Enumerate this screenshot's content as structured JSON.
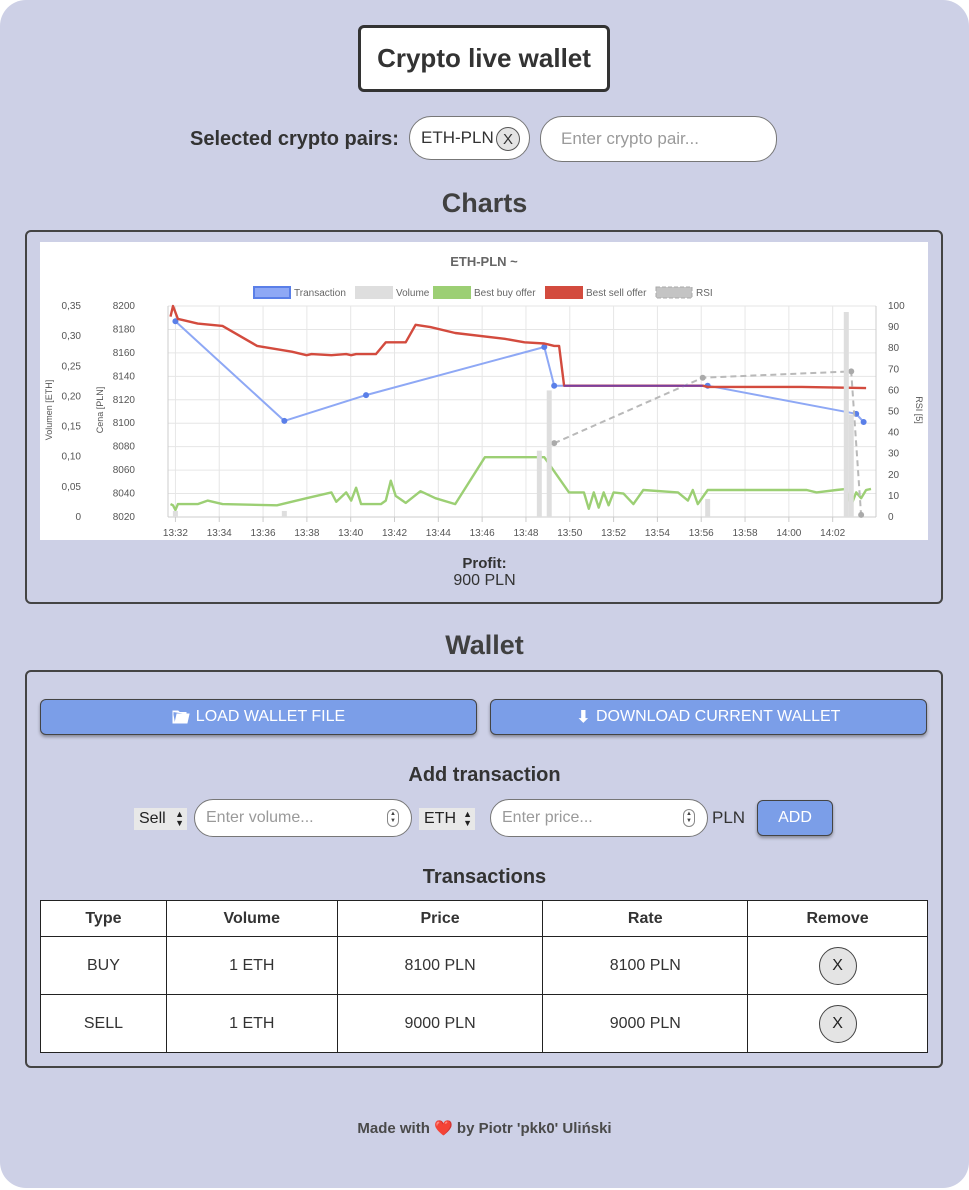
{
  "app": {
    "title": "Crypto live wallet"
  },
  "pairs": {
    "label": "Selected crypto pairs:",
    "selected": [
      {
        "name": "ETH-PLN",
        "remove_label": "X"
      }
    ],
    "input_placeholder": "Enter crypto pair..."
  },
  "charts": {
    "section_title": "Charts",
    "profit_label": "Profit:",
    "profit_value": "900 PLN"
  },
  "chart_data": {
    "type": "line",
    "title": "ETH-PLN ~",
    "legend": [
      {
        "name": "Transaction",
        "color": "#8ea8f5"
      },
      {
        "name": "Volume",
        "color": "#dedede"
      },
      {
        "name": "Best buy offer",
        "color": "#9ccf74"
      },
      {
        "name": "Best sell offer",
        "color": "#d34b3e"
      },
      {
        "name": "RSI",
        "color": "#c4c4c4"
      }
    ],
    "legend_position": "top",
    "grid": true,
    "xlabel": "",
    "x_ticks": [
      "13:32",
      "13:34",
      "13:36",
      "13:38",
      "13:40",
      "13:42",
      "13:44",
      "13:46",
      "13:48",
      "13:50",
      "13:52",
      "13:54",
      "13:56",
      "13:58",
      "14:00",
      "14:02"
    ],
    "axes": {
      "volume": {
        "label": "Volumen [ETH]",
        "ticks": [
          "0",
          "0,05",
          "0,10",
          "0,15",
          "0,20",
          "0,25",
          "0,30",
          "0,35"
        ],
        "range": [
          0,
          0.35
        ]
      },
      "price": {
        "label": "Cena [PLN]",
        "ticks": [
          "8020",
          "8040",
          "8060",
          "8080",
          "8100",
          "8120",
          "8140",
          "8160",
          "8180",
          "8200"
        ],
        "range": [
          8020,
          8200
        ]
      },
      "rsi": {
        "label": "RSI [5]",
        "ticks": [
          "0",
          "10",
          "20",
          "30",
          "40",
          "50",
          "60",
          "70",
          "80",
          "90",
          "100"
        ],
        "range": [
          0,
          100
        ]
      }
    },
    "series": [
      {
        "name": "Transaction",
        "axis": "price",
        "color": "#8ea8f5",
        "points": [
          [
            13.5,
            8187
          ],
          [
            35.5,
            8102
          ],
          [
            52,
            8124
          ],
          [
            88,
            8165
          ],
          [
            90,
            8132
          ],
          [
            121,
            8132
          ],
          [
            151,
            8108
          ],
          [
            152.5,
            8101
          ]
        ]
      },
      {
        "name": "Best sell offer",
        "axis": "price",
        "color": "#d34b3e",
        "points": [
          [
            12.5,
            8191
          ],
          [
            13,
            8200
          ],
          [
            14,
            8189
          ],
          [
            15,
            8188
          ],
          [
            18,
            8185
          ],
          [
            23,
            8183
          ],
          [
            30,
            8166
          ],
          [
            37,
            8161
          ],
          [
            40,
            8158
          ],
          [
            41,
            8159
          ],
          [
            45,
            8158
          ],
          [
            48,
            8159
          ],
          [
            49,
            8158
          ],
          [
            50,
            8159
          ],
          [
            52,
            8159
          ],
          [
            54,
            8159
          ],
          [
            56,
            8169
          ],
          [
            60,
            8169
          ],
          [
            62,
            8184
          ],
          [
            65,
            8182
          ],
          [
            70,
            8177
          ],
          [
            80,
            8172
          ],
          [
            84,
            8169
          ],
          [
            88,
            8168
          ],
          [
            89,
            8167
          ],
          [
            90,
            8166
          ],
          [
            91,
            8166
          ],
          [
            92,
            8132
          ],
          [
            100,
            8132
          ],
          [
            120,
            8132
          ],
          [
            121,
            8131
          ],
          [
            140,
            8131
          ],
          [
            153,
            8130
          ]
        ]
      },
      {
        "name": "Best buy offer",
        "axis": "price",
        "color": "#9ccf74",
        "points": [
          [
            12.5,
            8031
          ],
          [
            13,
            8030
          ],
          [
            13.5,
            8026
          ],
          [
            14,
            8031
          ],
          [
            18,
            8031
          ],
          [
            20,
            8034
          ],
          [
            23,
            8031
          ],
          [
            34,
            8030
          ],
          [
            40,
            8036
          ],
          [
            45,
            8041
          ],
          [
            46,
            8033
          ],
          [
            48,
            8041
          ],
          [
            49,
            8034
          ],
          [
            50,
            8045
          ],
          [
            51,
            8031
          ],
          [
            55,
            8031
          ],
          [
            56,
            8034
          ],
          [
            57,
            8051
          ],
          [
            58,
            8038
          ],
          [
            60,
            8032
          ],
          [
            63,
            8042
          ],
          [
            66,
            8036
          ],
          [
            70,
            8031
          ],
          [
            76,
            8071
          ],
          [
            88,
            8071
          ],
          [
            93,
            8041
          ],
          [
            96,
            8041
          ],
          [
            97,
            8027
          ],
          [
            98,
            8041
          ],
          [
            99,
            8028
          ],
          [
            100,
            8041
          ],
          [
            101,
            8030
          ],
          [
            102,
            8041
          ],
          [
            104,
            8040
          ],
          [
            106,
            8031
          ],
          [
            108,
            8043
          ],
          [
            115,
            8041
          ],
          [
            117,
            8034
          ],
          [
            118,
            8043
          ],
          [
            119,
            8031
          ],
          [
            121,
            8043
          ],
          [
            141,
            8043
          ],
          [
            143,
            8041
          ],
          [
            147,
            8043
          ],
          [
            149,
            8044
          ],
          [
            150,
            8030
          ],
          [
            151,
            8041
          ],
          [
            152,
            8036
          ],
          [
            153,
            8043
          ],
          [
            154,
            8044
          ]
        ]
      },
      {
        "name": "RSI",
        "axis": "rsi",
        "color": "#b9b9b9",
        "dashed": true,
        "points": [
          [
            90,
            35
          ],
          [
            120,
            66
          ],
          [
            150,
            69
          ],
          [
            152,
            1
          ]
        ]
      },
      {
        "name": "Volume",
        "axis": "volume",
        "type": "bar",
        "color": "#dedede",
        "points": [
          [
            13.5,
            0.01
          ],
          [
            35.5,
            0.01
          ],
          [
            87,
            0.11
          ],
          [
            89,
            0.21
          ],
          [
            121,
            0.03
          ],
          [
            149,
            0.34
          ],
          [
            150,
            0.17
          ]
        ]
      }
    ]
  },
  "wallet": {
    "section_title": "Wallet",
    "load_label": "LOAD WALLET FILE",
    "load_icon": "folder-icon",
    "download_label": "DOWNLOAD CURRENT WALLET",
    "download_icon": "download-arrow-icon",
    "add_title": "Add transaction",
    "type_value": "Sell",
    "volume_placeholder": "Enter volume...",
    "currency_value": "ETH",
    "price_placeholder": "Enter price...",
    "price_unit": "PLN",
    "add_label": "ADD",
    "transactions_title": "Transactions",
    "columns": [
      "Type",
      "Volume",
      "Price",
      "Rate",
      "Remove"
    ],
    "rows": [
      {
        "type": "BUY",
        "volume": "1 ETH",
        "price": "8100 PLN",
        "rate": "8100 PLN",
        "remove": "X"
      },
      {
        "type": "SELL",
        "volume": "1 ETH",
        "price": "9000 PLN",
        "rate": "9000 PLN",
        "remove": "X"
      }
    ]
  },
  "footer": {
    "prefix": "Made with",
    "heart": "❤️",
    "suffix": "by Piotr 'pkk0' Uliński"
  },
  "colors": {
    "page_bg": "#cdd0e6",
    "button_blue": "#7b9ee8"
  }
}
